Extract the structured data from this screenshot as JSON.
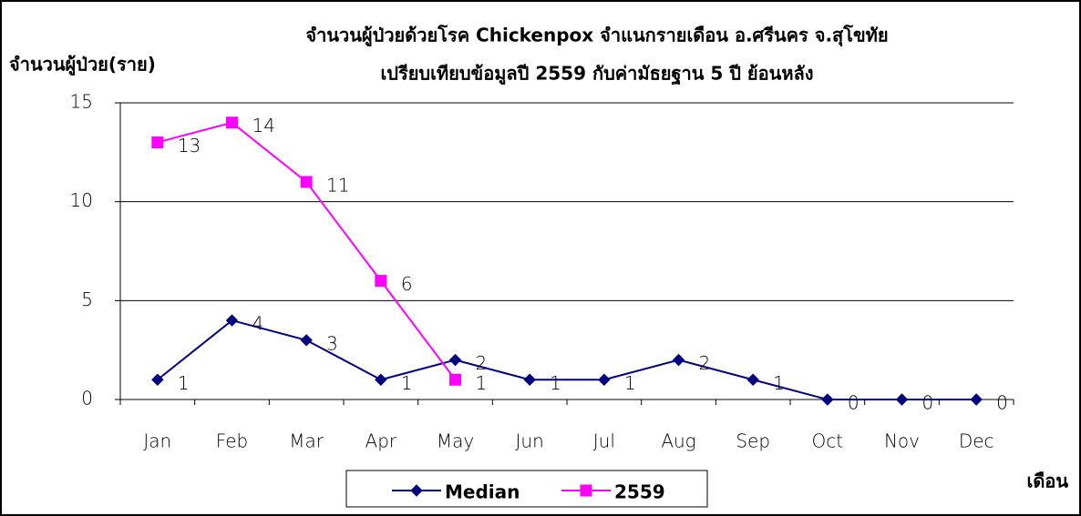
{
  "chart_data": {
    "type": "line",
    "title": "จำนวนผู้ป่วยด้วยโรค  Chickenpox  จำแนกรายเดือน     อ.ศรีนคร จ.สุโขทัย",
    "subtitle": "เปรียบเทียบข้อมูลปี  2559  กับค่ามัธยฐาน 5 ปี ย้อนหลัง",
    "y_label": "จำนวนผู้ป่วย(ราย)",
    "x_label": "เดือน",
    "categories": [
      "Jan",
      "Feb",
      "Mar",
      "Apr",
      "May",
      "Jun",
      "Jul",
      "Aug",
      "Sep",
      "Oct",
      "Nov",
      "Dec"
    ],
    "series": [
      {
        "name": "Median",
        "color": "#000080",
        "marker": "diamond",
        "values": [
          1,
          4,
          3,
          1,
          2,
          1,
          1,
          2,
          1,
          0,
          0,
          0
        ]
      },
      {
        "name": "2559",
        "color": "#ff00ff",
        "marker": "square",
        "values": [
          13,
          14,
          11,
          6,
          1,
          null,
          null,
          null,
          null,
          null,
          null,
          null
        ]
      }
    ],
    "ylim": [
      0,
      15
    ],
    "yticks": [
      0,
      5,
      10,
      15
    ],
    "grid": true,
    "legend": "bottom"
  }
}
